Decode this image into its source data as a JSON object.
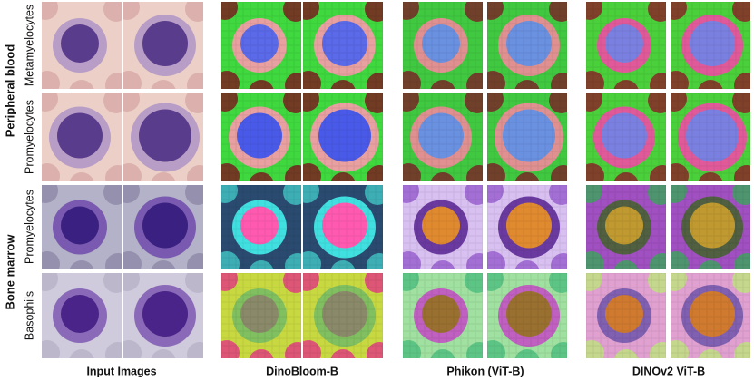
{
  "row_groups": [
    "Peripheral blood",
    "Bone marrow"
  ],
  "rows": [
    "Metamyelocytes",
    "Promyelocytes",
    "Promyelocytes",
    "Basophils"
  ],
  "columns": [
    "Input Images",
    "DinoBloom-B",
    "Phikon (ViT-B)",
    "DINOv2 ViT-B"
  ]
}
